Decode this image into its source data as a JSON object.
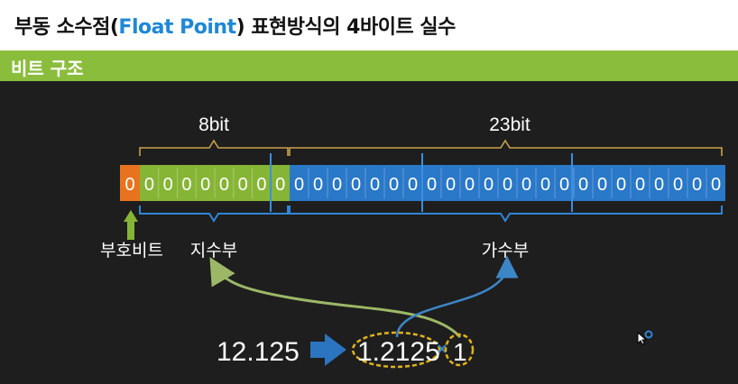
{
  "title": {
    "prefix": "부동 소수점(",
    "accent": "Float Point",
    "suffix": ") 표현방식의 4바이트 실수"
  },
  "section": {
    "label": "비트 구조"
  },
  "diagram": {
    "sign_bits": [
      "0"
    ],
    "exponent_bits": [
      "0",
      "0",
      "0",
      "0",
      "0",
      "0",
      "0",
      "0"
    ],
    "mantissa_bits": [
      "0",
      "0",
      "0",
      "0",
      "0",
      "0",
      "0",
      "0",
      "0",
      "0",
      "0",
      "0",
      "0",
      "0",
      "0",
      "0",
      "0",
      "0",
      "0",
      "0",
      "0",
      "0",
      "0"
    ],
    "exponent_count_label": "8bit",
    "mantissa_count_label": "23bit",
    "sign_label": "부호비트",
    "exponent_label": "지수부",
    "mantissa_label": "가수부",
    "example": {
      "decimal": "12.125",
      "mantissa": "1.2125",
      "exponent": "1"
    }
  },
  "colors": {
    "sign": "#e8731e",
    "exponent": "#86b536",
    "mantissa": "#2a78c8",
    "brace_top": "#c9a24a",
    "brace_bottom": "#2f86d6",
    "arrow_sign": "#86b536",
    "big_arrow": "#2a74c0",
    "ellipse": "#e0b31c",
    "curve_exponent": "#9cb866",
    "curve_mantissa": "#3d86c6"
  }
}
